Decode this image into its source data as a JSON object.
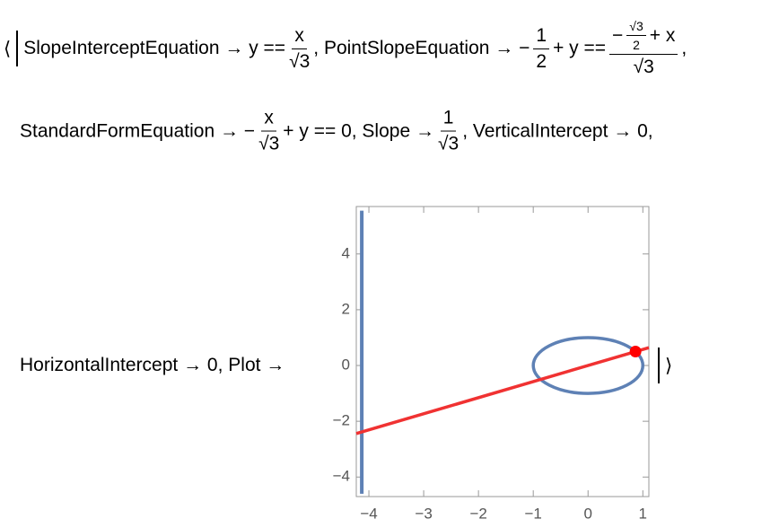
{
  "rows": [
    {
      "t1": "SlopeInterceptEquation → y ==",
      "f1n": "x",
      "f1d": "√3",
      "t2": ", PointSlopeEquation → −",
      "f2n": "1",
      "f2d": "2",
      "t3": "+ y ==",
      "f3a": "−",
      "f3nn": "√3",
      "f3nd": "2",
      "f3b": "+ x",
      "f3d": "√3",
      "t4": ","
    },
    {
      "t1": "StandardFormEquation → −",
      "f1n": "x",
      "f1d": "√3",
      "t2": "+ y == 0, Slope →",
      "f2n": "1",
      "f2d": "√3",
      "t3": ", VerticalIntercept → 0,"
    },
    {
      "t1": "HorizontalIntercept → 0, Plot →"
    }
  ],
  "open": "⟨",
  "close": "⟩",
  "plot": {
    "type": "plot",
    "xlim": [
      -4.23,
      1.11
    ],
    "ylim": [
      -4.7,
      5.7
    ],
    "xticks": [
      {
        "value": -4,
        "label": "−4"
      },
      {
        "value": -3,
        "label": "−3"
      },
      {
        "value": -2,
        "label": "−2"
      },
      {
        "value": -1,
        "label": "−1"
      },
      0,
      1
    ],
    "yticks": [
      {
        "value": -4,
        "label": "−4"
      },
      {
        "value": -2,
        "label": "−2"
      },
      0,
      2,
      4
    ],
    "vline": {
      "x": [
        -4.13,
        -4.13
      ],
      "y": [
        -4.6,
        5.55
      ],
      "color": "#5e81b5"
    },
    "circle": {
      "cx": 0,
      "cy": 0,
      "r": 1,
      "color": "#5e81b5"
    },
    "line": {
      "x": [
        -4.23,
        1.11
      ],
      "y": [
        -2.44,
        0.64
      ],
      "color": "#f03232"
    },
    "point": {
      "x": 0.866,
      "y": 0.5,
      "color": "#ff0000"
    }
  }
}
